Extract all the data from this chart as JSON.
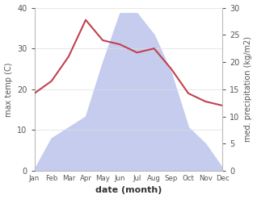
{
  "months": [
    "Jan",
    "Feb",
    "Mar",
    "Apr",
    "May",
    "Jun",
    "Jul",
    "Aug",
    "Sep",
    "Oct",
    "Nov",
    "Dec"
  ],
  "temp": [
    19,
    22,
    28,
    37,
    32,
    31,
    29,
    30,
    25,
    19,
    17,
    16
  ],
  "precip_kg": [
    0.3,
    6,
    8,
    10,
    20,
    29,
    29,
    25,
    18,
    8,
    5,
    0.5
  ],
  "temp_color": "#c0414e",
  "precip_fill_color": "#c5ccee",
  "precip_line_color": "#9aa4d0",
  "xlabel": "date (month)",
  "ylabel_left": "max temp (C)",
  "ylabel_right": "med. precipitation (kg/m2)",
  "ylim_left": [
    0,
    40
  ],
  "ylim_right": [
    0,
    30
  ],
  "yticks_left": [
    0,
    10,
    20,
    30,
    40
  ],
  "yticks_right": [
    0,
    5,
    10,
    15,
    20,
    25,
    30
  ],
  "bg_color": "#ffffff",
  "spine_color": "#bbbbbb",
  "tick_color": "#555555",
  "label_color": "#333333"
}
